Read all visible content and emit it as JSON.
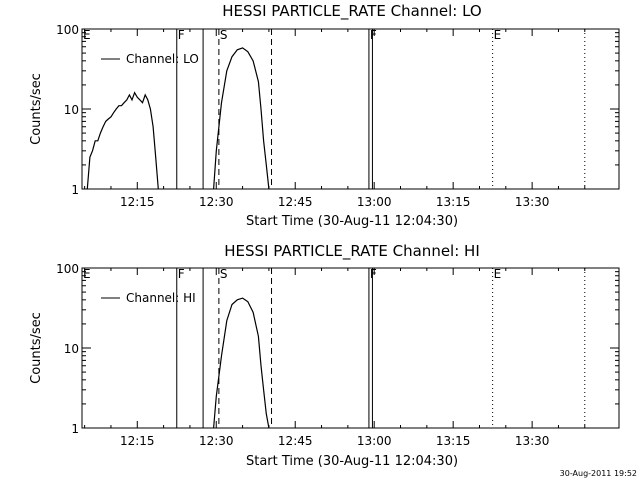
{
  "chart_data": [
    {
      "type": "line",
      "title": "HESSI PARTICLE_RATE Channel: LO",
      "xlabel": "Start Time (30-Aug-11 12:04:30)",
      "ylabel": "Counts/sec",
      "y_scale": "log",
      "ylim": [
        1,
        100
      ],
      "xlim": [
        "12:04:30",
        "13:46:30"
      ],
      "x_ticks": [
        "12:15",
        "12:30",
        "12:45",
        "13:00",
        "13:15",
        "13:30"
      ],
      "y_ticks": [
        "1",
        "10",
        "100"
      ],
      "grid": false,
      "legend_position": "upper-left",
      "series": [
        {
          "name": "Channel: LO",
          "x": [
            "12:05:30",
            "12:06:00",
            "12:06:30",
            "12:07:00",
            "12:07:30",
            "12:08:00",
            "12:08:30",
            "12:09:00",
            "12:09:30",
            "12:10:00",
            "12:10:30",
            "12:11:00",
            "12:11:30",
            "12:12:00",
            "12:12:30",
            "12:13:00",
            "12:13:30",
            "12:14:00",
            "12:14:30",
            "12:15:00",
            "12:15:30",
            "12:16:00",
            "12:16:30",
            "12:17:00",
            "12:17:30",
            "12:18:00",
            "12:18:30",
            "12:19:00"
          ],
          "values": [
            1.0,
            2.5,
            3.0,
            4.0,
            4.0,
            5.0,
            6.0,
            7.0,
            7.5,
            8.0,
            9.0,
            10.0,
            11.0,
            11.0,
            12.0,
            13.0,
            15.0,
            13.0,
            16.0,
            14.0,
            13.0,
            12.0,
            15.0,
            13.0,
            10.0,
            6.0,
            2.5,
            1.0
          ]
        },
        {
          "name": "Channel: LO",
          "x": [
            "12:29:30",
            "12:30:00",
            "12:31:00",
            "12:32:00",
            "12:33:00",
            "12:34:00",
            "12:35:00",
            "12:36:00",
            "12:37:00",
            "12:38:00",
            "12:38:30",
            "12:39:00",
            "12:39:30",
            "12:40:00"
          ],
          "values": [
            1.0,
            3.0,
            12.0,
            30.0,
            45.0,
            55.0,
            58.0,
            52.0,
            40.0,
            22.0,
            10.0,
            4.0,
            2.0,
            1.0
          ]
        }
      ],
      "event_lines": [
        {
          "label": "E",
          "x": "12:04:30",
          "style": "solid"
        },
        {
          "label": "F",
          "x": "12:22:30",
          "style": "solid"
        },
        {
          "label": "",
          "x": "12:27:30",
          "style": "solid"
        },
        {
          "label": "S",
          "x": "12:30:30",
          "style": "dashed"
        },
        {
          "label": "",
          "x": "12:40:30",
          "style": "dashed"
        },
        {
          "label": "F",
          "x": "12:59:00",
          "style": "solid"
        },
        {
          "label": "",
          "x": "12:59:40",
          "style": "solid"
        },
        {
          "label": "E",
          "x": "13:22:30",
          "style": "dotted"
        },
        {
          "label": "",
          "x": "13:40:00",
          "style": "dotted"
        }
      ]
    },
    {
      "type": "line",
      "title": "HESSI PARTICLE_RATE Channel: HI",
      "xlabel": "Start Time (30-Aug-11 12:04:30)",
      "ylabel": "Counts/sec",
      "y_scale": "log",
      "ylim": [
        1,
        100
      ],
      "xlim": [
        "12:04:30",
        "13:46:30"
      ],
      "x_ticks": [
        "12:15",
        "12:30",
        "12:45",
        "13:00",
        "13:15",
        "13:30"
      ],
      "y_ticks": [
        "1",
        "10",
        "100"
      ],
      "grid": false,
      "legend_position": "upper-left",
      "series": [
        {
          "name": "Channel: HI",
          "x": [
            "12:29:30",
            "12:30:00",
            "12:31:00",
            "12:32:00",
            "12:33:00",
            "12:34:00",
            "12:35:00",
            "12:36:00",
            "12:37:00",
            "12:38:00",
            "12:38:30",
            "12:39:00",
            "12:39:30",
            "12:40:00"
          ],
          "values": [
            1.0,
            2.5,
            8.0,
            22.0,
            35.0,
            40.0,
            42.0,
            38.0,
            28.0,
            14.0,
            6.0,
            3.0,
            1.5,
            1.0
          ]
        }
      ],
      "event_lines": [
        {
          "label": "E",
          "x": "12:04:30",
          "style": "solid"
        },
        {
          "label": "F",
          "x": "12:22:30",
          "style": "solid"
        },
        {
          "label": "",
          "x": "12:27:30",
          "style": "solid"
        },
        {
          "label": "S",
          "x": "12:30:30",
          "style": "dashed"
        },
        {
          "label": "",
          "x": "12:40:30",
          "style": "dashed"
        },
        {
          "label": "F",
          "x": "12:59:00",
          "style": "solid"
        },
        {
          "label": "",
          "x": "12:59:40",
          "style": "solid"
        },
        {
          "label": "E",
          "x": "13:22:30",
          "style": "dotted"
        },
        {
          "label": "",
          "x": "13:40:00",
          "style": "dotted"
        }
      ]
    }
  ],
  "timestamp": "30-Aug-2011 19:52"
}
